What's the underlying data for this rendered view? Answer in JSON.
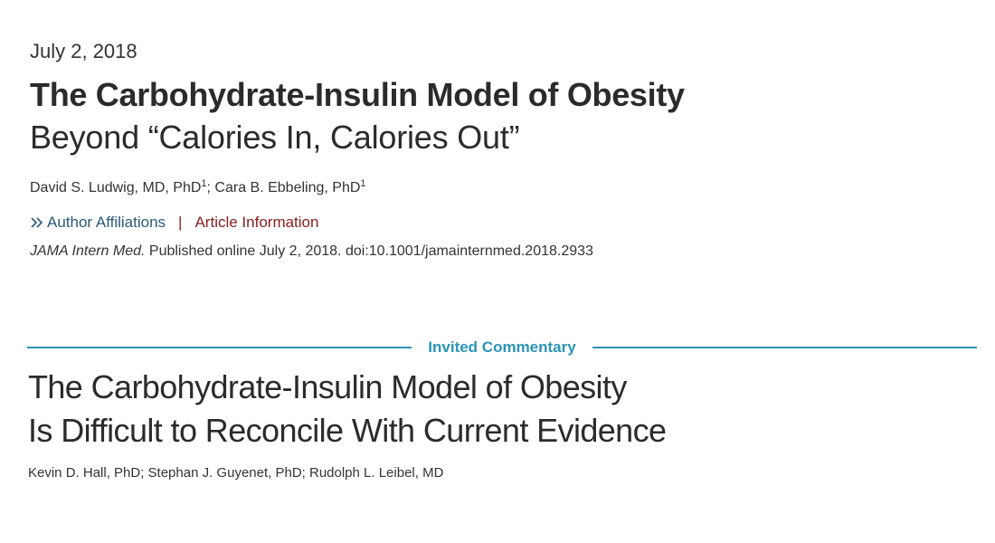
{
  "article_1": {
    "date": "July 2, 2018",
    "title": "The Carbohydrate-Insulin Model of Obesity",
    "subtitle": "Beyond “Calories In, Calories Out”",
    "authors": [
      {
        "name": "David S. Ludwig, MD, PhD",
        "sup": "1",
        "sep": "; "
      },
      {
        "name": "Cara B. Ebbeling, PhD",
        "sup": "1",
        "sep": ""
      }
    ],
    "links": {
      "affiliations": "Author Affiliations",
      "separator": "|",
      "article_info": "Article Information"
    },
    "citation": {
      "journal": "JAMA Intern Med.",
      "rest": " Published online July 2, 2018. doi:10.1001/jamainternmed.2018.2933"
    }
  },
  "section_label": "Invited Commentary",
  "article_2": {
    "title_line1": "The Carbohydrate-Insulin Model of Obesity",
    "title_line2": "Is Difficult to Reconcile With Current Evidence",
    "authors": "Kevin D. Hall, PhD; Stephan J. Guyenet, PhD; Rudolph L. Leibel, MD"
  },
  "colors": {
    "link_blue": "#2a5978",
    "link_red": "#8a1c1c",
    "accent_teal": "#2a94b6"
  }
}
